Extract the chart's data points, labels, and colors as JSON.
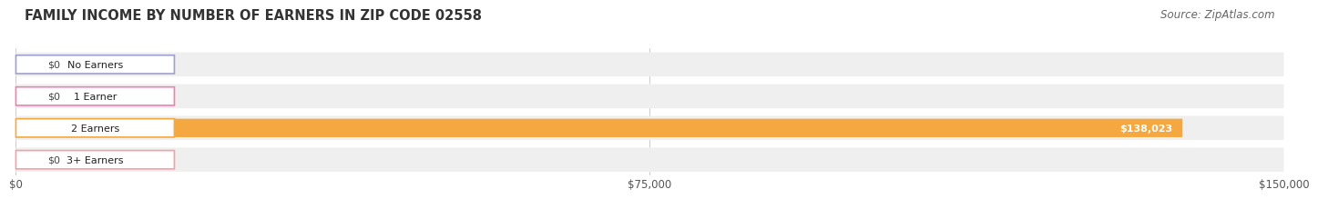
{
  "title": "FAMILY INCOME BY NUMBER OF EARNERS IN ZIP CODE 02558",
  "source": "Source: ZipAtlas.com",
  "categories": [
    "No Earners",
    "1 Earner",
    "2 Earners",
    "3+ Earners"
  ],
  "values": [
    0,
    0,
    138023,
    0
  ],
  "bar_colors": [
    "#a0a0d0",
    "#f080b0",
    "#f5a840",
    "#f4a0a8"
  ],
  "label_border_colors": [
    "#a0a0d0",
    "#f080b0",
    "#f5a840",
    "#f4a0a8"
  ],
  "row_bg_color": "#efefef",
  "xlim": [
    0,
    150000
  ],
  "xticks": [
    0,
    75000,
    150000
  ],
  "xtick_labels": [
    "$0",
    "$75,000",
    "$150,000"
  ],
  "value_labels": [
    "$0",
    "$0",
    "$138,023",
    "$0"
  ],
  "title_fontsize": 10.5,
  "source_fontsize": 8.5,
  "label_fontsize": 8,
  "tick_fontsize": 8.5,
  "value_fontsize": 8
}
